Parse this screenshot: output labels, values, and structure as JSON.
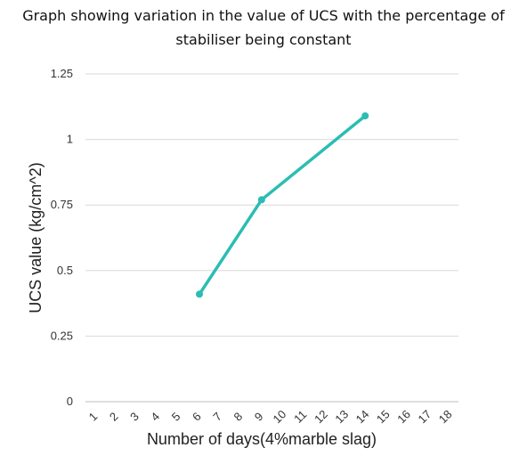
{
  "chart_data": {
    "type": "line",
    "title_lines": [
      "Graph showing variation in the value of UCS with the percentage of",
      "stabiliser being constant"
    ],
    "xlabel": "Number of days(4%marble slag)",
    "ylabel": "UCS value (kg/cm^2)",
    "categories": [
      "1",
      "2",
      "3",
      "4",
      "5",
      "6",
      "7",
      "8",
      "9",
      "10",
      "11",
      "12",
      "13",
      "14",
      "15",
      "16",
      "17",
      "18"
    ],
    "yticks": [
      "0",
      "0.25",
      "0.5",
      "0.75",
      "1",
      "1.25"
    ],
    "ylim": [
      0,
      1.25
    ],
    "grid": true,
    "series": [
      {
        "x": [
          "6",
          "9",
          "14"
        ],
        "values": [
          0.41,
          0.77,
          1.09
        ],
        "color": "#2bbdb3"
      }
    ],
    "colors": {
      "line": "#2bbdb3",
      "grid": "#d9d9d9",
      "axis": "#bfbfbf"
    }
  }
}
